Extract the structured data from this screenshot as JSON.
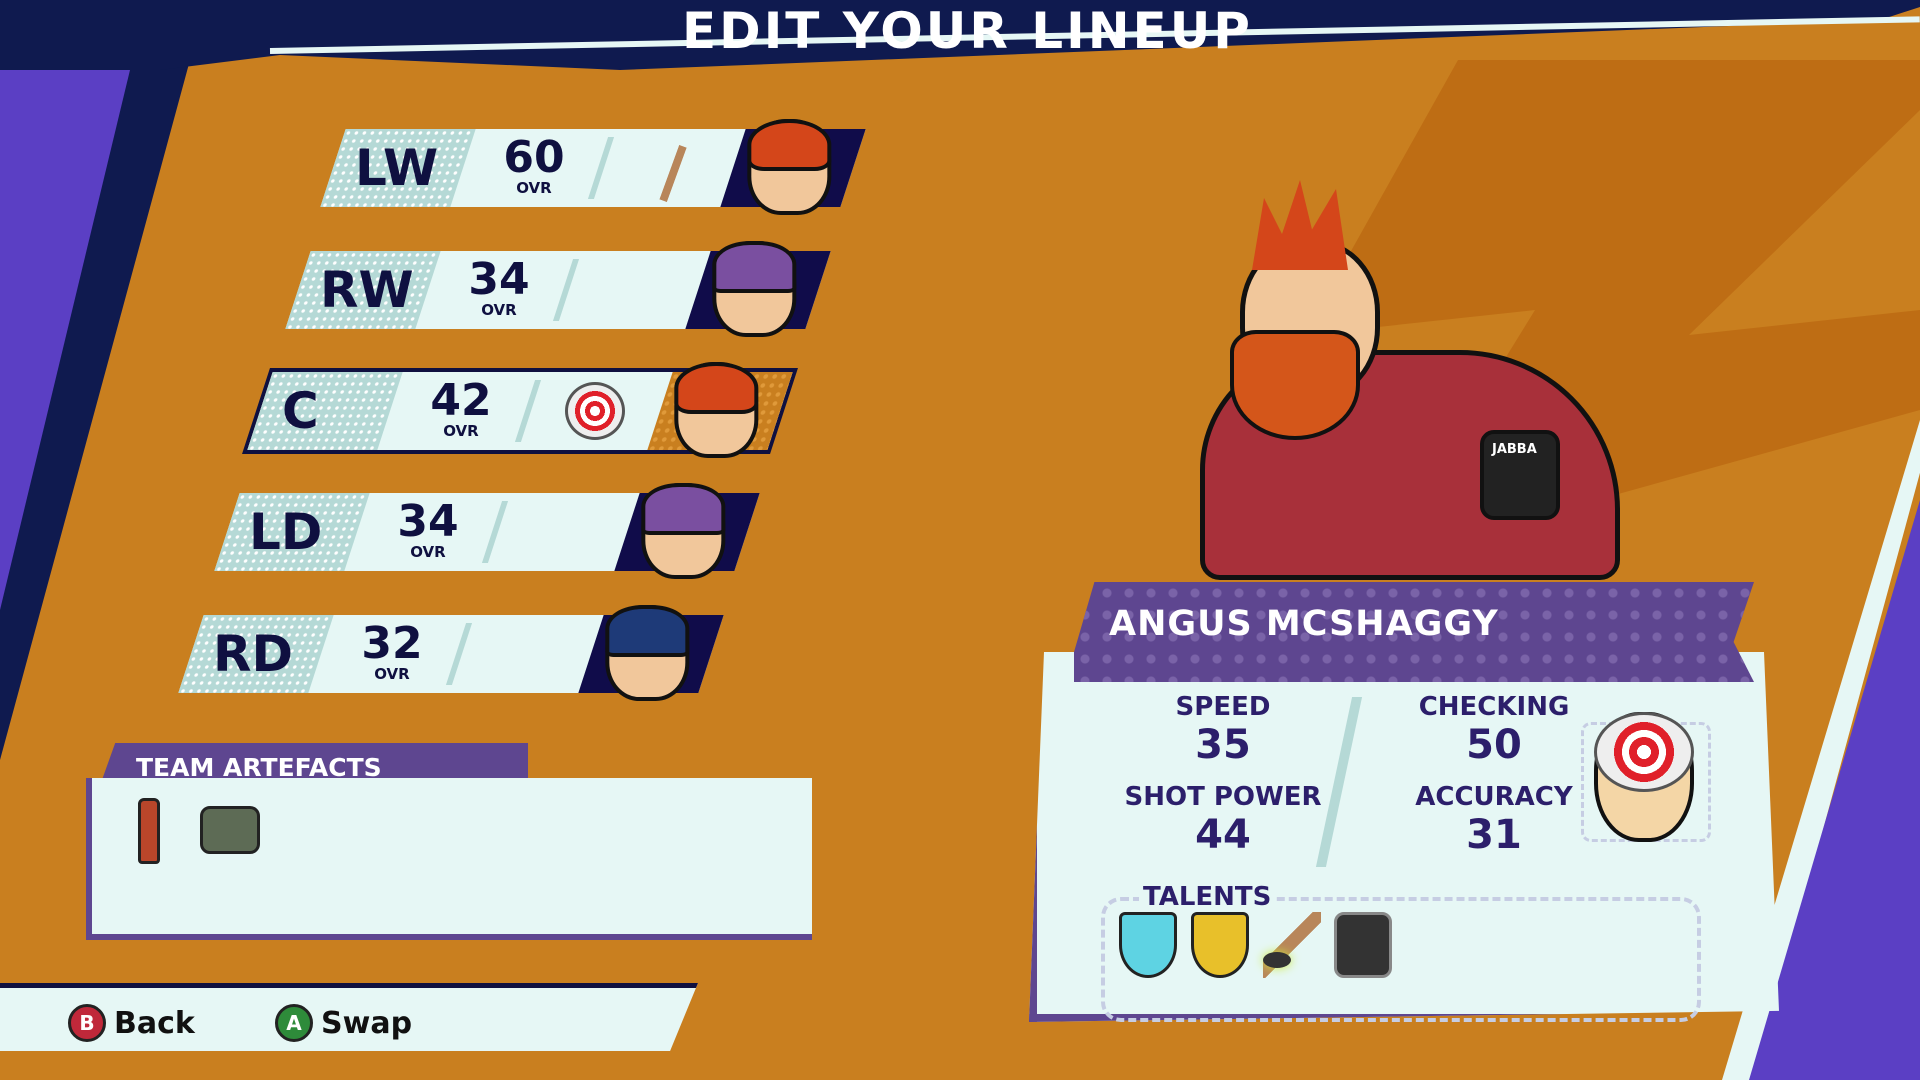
{
  "screen_title": "EDIT YOUR LINEUP",
  "lineup": [
    {
      "position": "LW",
      "ovr": "60",
      "ovr_label": "OVR",
      "artefact": "hockey-stick-icon",
      "helmet": "none",
      "hair": "#D4461A"
    },
    {
      "position": "RW",
      "ovr": "34",
      "ovr_label": "OVR",
      "artefact": "",
      "helmet": "#7A4FA0"
    },
    {
      "position": "C",
      "ovr": "42",
      "ovr_label": "OVR",
      "artefact": "target-helmet-icon",
      "helmet": "none",
      "hair": "#D4461A",
      "selected": true
    },
    {
      "position": "LD",
      "ovr": "34",
      "ovr_label": "OVR",
      "artefact": "",
      "helmet": "#7A4FA0"
    },
    {
      "position": "RD",
      "ovr": "32",
      "ovr_label": "OVR",
      "artefact": "",
      "helmet": "#1E3A78"
    }
  ],
  "team_artefacts": {
    "title": "TEAM ARTEFACTS",
    "items": [
      "bottle-icon",
      "radio-device-icon"
    ]
  },
  "controls": [
    {
      "button": "B",
      "label": "Back",
      "color": "#C0283A"
    },
    {
      "button": "A",
      "label": "Swap",
      "color": "#2E8B3A"
    }
  ],
  "player": {
    "name": "ANGUS MCSHAGGY",
    "jersey_text": "JABBA",
    "stats": [
      {
        "label": "SPEED",
        "value": "35"
      },
      {
        "label": "CHECKING",
        "value": "50"
      },
      {
        "label": "SHOT POWER",
        "value": "44"
      },
      {
        "label": "ACCURACY",
        "value": "31"
      }
    ],
    "talents_label": "TALENTS",
    "talents": [
      "blue-fist-shield-icon",
      "gold-fist-shield-icon",
      "stick-puck-icon",
      "xray-icon"
    ],
    "equipped_artefact": "target-helmet-icon"
  },
  "colors": {
    "background": "#C97F1F",
    "navy": "#0F1A4F",
    "purple": "#5E4690",
    "panel": "#E6F7F5"
  }
}
